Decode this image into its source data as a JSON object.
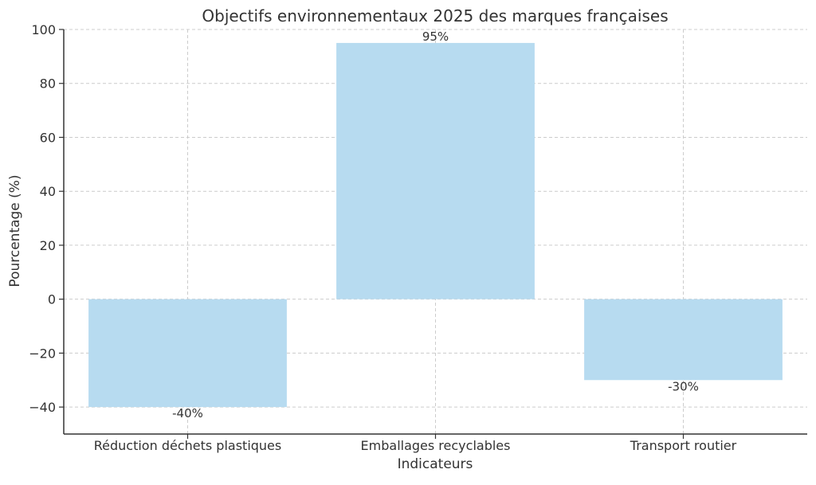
{
  "chart_data": {
    "type": "bar",
    "title": "Objectifs environnementaux 2025 des marques françaises",
    "xlabel": "Indicateurs",
    "ylabel": "Pourcentage (%)",
    "categories": [
      "Réduction déchets plastiques",
      "Emballages recyclables",
      "Transport routier"
    ],
    "values": [
      -40,
      95,
      -30
    ],
    "data_labels": [
      "-40%",
      "95%",
      "-30%"
    ],
    "ylim": [
      -50,
      100
    ],
    "yticks": [
      -40,
      -20,
      0,
      20,
      40,
      60,
      80,
      100
    ],
    "ytick_labels": [
      "−40",
      "−20",
      "0",
      "20",
      "40",
      "60",
      "80",
      "100"
    ],
    "grid": true,
    "legend": "none",
    "bar_color": "#b7dbf0"
  }
}
